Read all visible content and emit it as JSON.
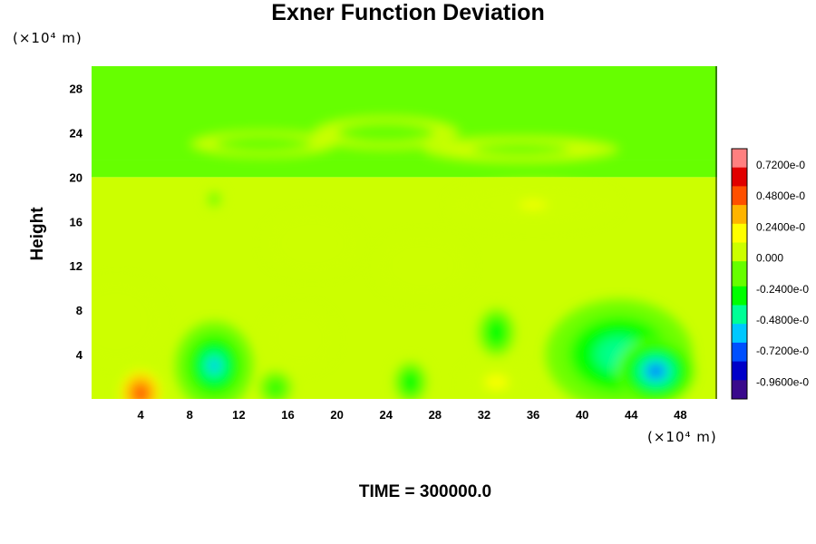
{
  "chart_data": {
    "type": "heatmap",
    "title": "Exner Function Deviation",
    "ylabel": "Height",
    "x_unit": "(×10⁴ m)",
    "y_unit": "(×10⁴ m)",
    "footer": "TIME = 300000.0",
    "xlim": [
      0,
      51
    ],
    "ylim": [
      0,
      30
    ],
    "x_ticks": [
      "4",
      "8",
      "12",
      "16",
      "20",
      "24",
      "28",
      "32",
      "36",
      "40",
      "44",
      "48"
    ],
    "y_ticks": [
      "4",
      "8",
      "12",
      "16",
      "20",
      "24",
      "28"
    ],
    "colorbar": {
      "range": [
        -0.0011,
        0.0009
      ],
      "labels": [
        "0.7200e-0",
        "0.4800e-0",
        "0.2400e-0",
        "0.000",
        "-0.2400e-0",
        "-0.4800e-0",
        "-0.7200e-0",
        "-0.9600e-0"
      ],
      "colors": [
        "#3a0a8c",
        "#0000c8",
        "#0050ff",
        "#00c8ff",
        "#00ff96",
        "#00ff00",
        "#66ff00",
        "#ccff00",
        "#ffff00",
        "#ffb400",
        "#ff5000",
        "#e00000",
        "#ff8080"
      ]
    },
    "features": [
      {
        "x": 4,
        "y": 0.5,
        "value": 0.00055,
        "rx": 2,
        "ry": 2.5
      },
      {
        "x": 2,
        "y": 7,
        "value": 7e-05,
        "rx": 4,
        "ry": 4
      },
      {
        "x": 10,
        "y": 3,
        "value": -0.0005,
        "rx": 3.2,
        "ry": 4
      },
      {
        "x": 15,
        "y": 1,
        "value": -0.00028,
        "rx": 1.6,
        "ry": 1.8
      },
      {
        "x": 26,
        "y": 1.5,
        "value": -0.00032,
        "rx": 1.6,
        "ry": 2.2
      },
      {
        "x": 33,
        "y": 6,
        "value": -0.00032,
        "rx": 1.8,
        "ry": 2.6
      },
      {
        "x": 43,
        "y": 4,
        "value": -0.00045,
        "rx": 6,
        "ry": 5
      },
      {
        "x": 46,
        "y": 2.5,
        "value": -0.0007,
        "rx": 3.2,
        "ry": 3
      },
      {
        "x": 33,
        "y": 1.5,
        "value": 0.00015,
        "rx": 3,
        "ry": 2
      },
      {
        "x": 17,
        "y": 5.5,
        "value": 6e-05,
        "rx": 3,
        "ry": 3
      },
      {
        "x": 18,
        "y": 14,
        "value": 5e-05,
        "rx": 4,
        "ry": 3
      },
      {
        "x": 36,
        "y": 17.5,
        "value": 0.00014,
        "rx": 7,
        "ry": 2.2
      },
      {
        "x": 10,
        "y": 18,
        "value": -0.0001,
        "rx": 0.8,
        "ry": 1
      },
      {
        "x": 27,
        "y": 12,
        "value": 4e-05,
        "rx": 4,
        "ry": 3
      },
      {
        "x": 24,
        "y": 24,
        "value": -0.00012,
        "rx": 6,
        "ry": 1.5
      },
      {
        "x": 14,
        "y": 23,
        "value": -9e-05,
        "rx": 6,
        "ry": 1.2
      },
      {
        "x": 35,
        "y": 22.5,
        "value": -8e-05,
        "rx": 8,
        "ry": 1.2
      }
    ],
    "bands": [
      {
        "y_from": 0,
        "y_to": 20,
        "value": 4e-05
      },
      {
        "y_from": 20,
        "y_to": 21.5,
        "value": -0.00012
      },
      {
        "y_from": 21.5,
        "y_to": 30,
        "value": -5e-05
      }
    ]
  }
}
